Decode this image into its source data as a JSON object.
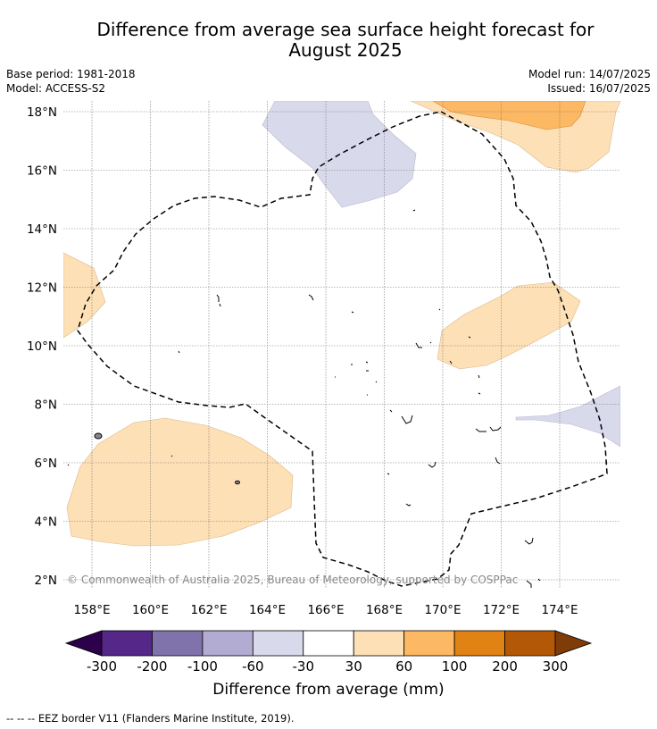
{
  "title": {
    "line1": "Difference from average sea surface height forecast for",
    "line2": "August 2025"
  },
  "meta": {
    "base_period": "Base period: 1981-2018",
    "model": "Model: ACCESS-S2",
    "model_run": "Model run: 14/07/2025",
    "issued": "Issued: 16/07/2025"
  },
  "map": {
    "lat_ticks": [
      "2°N",
      "4°N",
      "6°N",
      "8°N",
      "10°N",
      "12°N",
      "14°N",
      "16°N",
      "18°N"
    ],
    "lon_ticks": [
      "158°E",
      "160°E",
      "162°E",
      "164°E",
      "166°E",
      "168°E",
      "170°E",
      "172°E",
      "174°E"
    ],
    "lat_values": [
      2,
      4,
      6,
      8,
      10,
      12,
      14,
      16,
      18
    ],
    "lon_values": [
      158,
      160,
      162,
      164,
      166,
      168,
      170,
      172,
      174
    ],
    "copyright": "© Commonwealth of Australia 2025, Bureau of Meteorology, supported by COSPPac"
  },
  "colorbar": {
    "label": "Difference from average (mm)",
    "ticks": [
      "-300",
      "-200",
      "-100",
      "-60",
      "-30",
      "30",
      "60",
      "100",
      "200",
      "300"
    ],
    "colors": [
      "#2d004b",
      "#542788",
      "#8073ac",
      "#b2abd2",
      "#d8daeb",
      "#ffffff",
      "#fee0b6",
      "#fdb863",
      "#e08214",
      "#b35806",
      "#7f3b08"
    ]
  },
  "footnote": "--  --  -- EEZ border V11 (Flanders Marine Institute, 2019)."
}
